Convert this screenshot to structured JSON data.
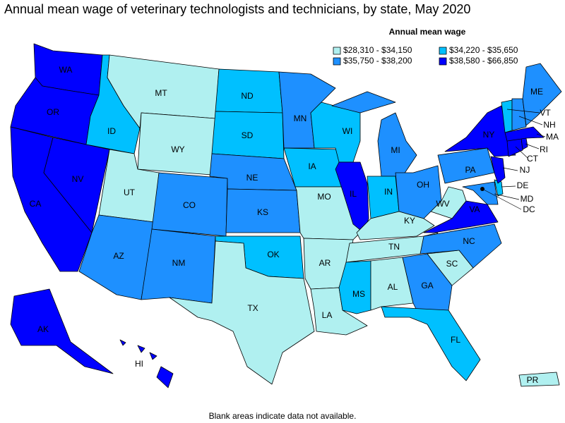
{
  "title": "Annual mean wage of veterinary technologists and technicians, by state, May 2020",
  "legend": {
    "title": "Annual mean wage",
    "items": [
      {
        "label": "$28,310 - $34,150",
        "color": "#b0f0f0"
      },
      {
        "label": "$34,220 - $35,650",
        "color": "#00c0ff"
      },
      {
        "label": "$35,750 - $38,200",
        "color": "#1e90ff"
      },
      {
        "label": "$38,580 - $66,850",
        "color": "#0000ff"
      }
    ]
  },
  "states": [
    {
      "label": "WA",
      "color": "#0000ff"
    },
    {
      "label": "OR",
      "color": "#0000ff"
    },
    {
      "label": "CA",
      "color": "#0000ff"
    },
    {
      "label": "NV",
      "color": "#0000ff"
    },
    {
      "label": "ID",
      "color": "#00c0ff"
    },
    {
      "label": "MT",
      "color": "#b0f0f0"
    },
    {
      "label": "WY",
      "color": "#b0f0f0"
    },
    {
      "label": "UT",
      "color": "#b0f0f0"
    },
    {
      "label": "AZ",
      "color": "#1e90ff"
    },
    {
      "label": "CO",
      "color": "#1e90ff"
    },
    {
      "label": "NM",
      "color": "#1e90ff"
    },
    {
      "label": "ND",
      "color": "#00c0ff"
    },
    {
      "label": "SD",
      "color": "#00c0ff"
    },
    {
      "label": "NE",
      "color": "#1e90ff"
    },
    {
      "label": "KS",
      "color": "#1e90ff"
    },
    {
      "label": "OK",
      "color": "#00c0ff"
    },
    {
      "label": "TX",
      "color": "#b0f0f0"
    },
    {
      "label": "MN",
      "color": "#1e90ff"
    },
    {
      "label": "IA",
      "color": "#00c0ff"
    },
    {
      "label": "MO",
      "color": "#b0f0f0"
    },
    {
      "label": "AR",
      "color": "#b0f0f0"
    },
    {
      "label": "LA",
      "color": "#b0f0f0"
    },
    {
      "label": "WI",
      "color": "#00c0ff"
    },
    {
      "label": "IL",
      "color": "#0000ff"
    },
    {
      "label": "MI",
      "color": "#1e90ff"
    },
    {
      "label": "IN",
      "color": "#00c0ff"
    },
    {
      "label": "OH",
      "color": "#1e90ff"
    },
    {
      "label": "KY",
      "color": "#b0f0f0"
    },
    {
      "label": "TN",
      "color": "#b0f0f0"
    },
    {
      "label": "MS",
      "color": "#00c0ff"
    },
    {
      "label": "AL",
      "color": "#b0f0f0"
    },
    {
      "label": "GA",
      "color": "#1e90ff"
    },
    {
      "label": "FL",
      "color": "#00c0ff"
    },
    {
      "label": "SC",
      "color": "#b0f0f0"
    },
    {
      "label": "NC",
      "color": "#1e90ff"
    },
    {
      "label": "VA",
      "color": "#0000ff"
    },
    {
      "label": "WV",
      "color": "#b0f0f0"
    },
    {
      "label": "PA",
      "color": "#1e90ff"
    },
    {
      "label": "MD",
      "color": "#1e90ff"
    },
    {
      "label": "DE",
      "color": "#00c0ff"
    },
    {
      "label": "NJ",
      "color": "#0000ff"
    },
    {
      "label": "NY",
      "color": "#0000ff"
    },
    {
      "label": "CT",
      "color": "#0000ff"
    },
    {
      "label": "RI",
      "color": "#0000ff"
    },
    {
      "label": "MA",
      "color": "#0000ff"
    },
    {
      "label": "VT",
      "color": "#00c0ff"
    },
    {
      "label": "NH",
      "color": "#1e90ff"
    },
    {
      "label": "ME",
      "color": "#1e90ff"
    },
    {
      "label": "AK",
      "color": "#0000ff"
    },
    {
      "label": "HI",
      "color": "#0000ff"
    },
    {
      "label": "PR",
      "color": "#b0f0f0"
    },
    {
      "label": "DC"
    }
  ],
  "footnote": "Blank areas indicate data not available."
}
